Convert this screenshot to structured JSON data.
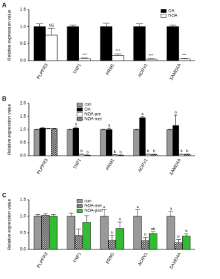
{
  "chart_data": [
    {
      "type": "bar",
      "panel": "A",
      "ylabel": "Relative expression value",
      "categories": [
        "PLPPR3",
        "TNP1",
        "PRM1",
        "ACRV1",
        "SAMD4A"
      ],
      "series": [
        {
          "name": "OA",
          "color": "#000000",
          "values": [
            1.0,
            1.0,
            1.0,
            1.0,
            1.0
          ],
          "errors": [
            0.08,
            0.05,
            0.1,
            0.08,
            0.05
          ]
        },
        {
          "name": "NOA",
          "color": "#ffffff",
          "values": [
            0.75,
            0.06,
            0.15,
            0.04,
            0.05
          ],
          "errors": [
            0.2,
            0.02,
            0.05,
            0.02,
            0.02
          ],
          "annotations": [
            "NS",
            "***",
            "***",
            "***",
            "***"
          ]
        }
      ],
      "ylim": [
        0,
        1.5
      ],
      "yticks": [
        {
          "value": 0,
          "label": "0.0"
        },
        {
          "value": 0.5,
          "label": "0.5"
        },
        {
          "value": 1,
          "label": "1.0"
        },
        {
          "value": 1.5,
          "label": "1.5"
        }
      ],
      "legend": "upper right"
    },
    {
      "type": "bar",
      "panel": "B",
      "ylabel": "Relative expression value",
      "categories": [
        "PLPPR3",
        "TNP1",
        "PRM1",
        "ACRV1",
        "SAMD4A"
      ],
      "series": [
        {
          "name": "con",
          "color": "#999999",
          "values": [
            1.0,
            1.0,
            1.0,
            1.0,
            1.0
          ],
          "errors": [
            0.02,
            0.02,
            0.02,
            0.02,
            0.02
          ]
        },
        {
          "name": "OA",
          "color": "#000000",
          "values": [
            1.05,
            1.05,
            1.0,
            1.45,
            1.15
          ],
          "errors": [
            0.03,
            0.05,
            0.05,
            0.04,
            0.4
          ],
          "annotations": [
            null,
            "a",
            "a",
            "a",
            "a"
          ]
        },
        {
          "name": "NOA-pre",
          "color": "#ffffff",
          "values": [
            1.03,
            0.05,
            0.03,
            0.05,
            0.05
          ],
          "errors": [
            0.01,
            0.01,
            0.01,
            0.01,
            0.01
          ],
          "annotations": [
            null,
            "b",
            "b",
            "b",
            "b"
          ]
        },
        {
          "name": "NOA-mei",
          "color": "#000000",
          "pattern": "checker",
          "values": [
            1.03,
            0.02,
            0.02,
            0.05,
            0.05
          ],
          "errors": [
            0.01,
            0.01,
            0.01,
            0.01,
            0.01
          ],
          "annotations": [
            null,
            "b",
            "b",
            "b",
            "b"
          ]
        }
      ],
      "ylim": [
        0,
        2
      ],
      "yticks": [
        {
          "value": 0,
          "label": "0.0"
        },
        {
          "value": 0.5,
          "label": "0.5"
        },
        {
          "value": 1,
          "label": "1.0"
        },
        {
          "value": 1.5,
          "label": "1.5"
        },
        {
          "value": 2,
          "label": "2.0"
        }
      ],
      "legend": "upper left"
    },
    {
      "type": "bar",
      "panel": "C",
      "ylabel": "Relative expression value",
      "categories": [
        "PLPPR3",
        "TNP1",
        "PRM1",
        "ACRV1",
        "SAMD4A"
      ],
      "series": [
        {
          "name": "con",
          "color": "#999999",
          "values": [
            1.0,
            1.0,
            1.0,
            1.0,
            1.0
          ],
          "errors": [
            0.05,
            0.1,
            0.2,
            0.2,
            0.15
          ],
          "annotations": [
            null,
            null,
            "a",
            "a",
            "a"
          ]
        },
        {
          "name": "NOA-mei",
          "color": "#000000",
          "pattern": "checker",
          "values": [
            1.03,
            0.42,
            0.27,
            0.26,
            0.2
          ],
          "errors": [
            0.05,
            0.2,
            0.15,
            0.1,
            0.1
          ],
          "annotations": [
            null,
            null,
            "b",
            "b",
            "b"
          ]
        },
        {
          "name": "NOA-post",
          "color": "#33bb33",
          "values": [
            1.0,
            0.82,
            0.63,
            0.48,
            0.4
          ],
          "errors": [
            0.05,
            0.2,
            0.2,
            0.05,
            0.07
          ],
          "annotations": [
            null,
            null,
            "a",
            "ab",
            "b"
          ]
        }
      ],
      "ylim": [
        0,
        1.5
      ],
      "yticks": [
        {
          "value": 0,
          "label": "0.0"
        },
        {
          "value": 0.5,
          "label": "0.5"
        },
        {
          "value": 1,
          "label": "1.0"
        },
        {
          "value": 1.5,
          "label": "1.5"
        }
      ],
      "legend": "upper left"
    }
  ]
}
